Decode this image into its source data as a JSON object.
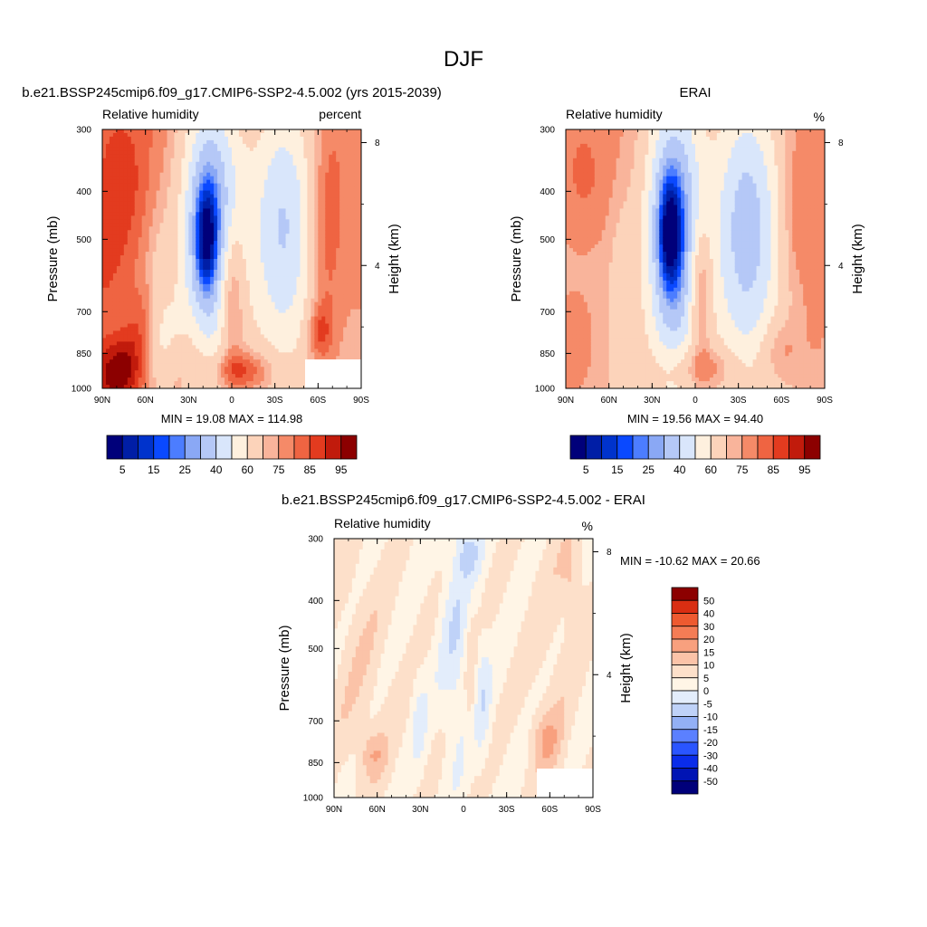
{
  "title": "DJF",
  "colors": {
    "abs": [
      "#00007a",
      "#001ea6",
      "#0033cc",
      "#0a49ff",
      "#4c7dff",
      "#8aa8f5",
      "#b5c8f7",
      "#d9e6fb",
      "#fef0de",
      "#fcd3ba",
      "#f9b49b",
      "#f58a68",
      "#ef6442",
      "#e33b1f",
      "#c11b0c",
      "#8c0000"
    ],
    "diff": [
      "#00007a",
      "#0014b4",
      "#0a2cea",
      "#2a55ff",
      "#5b80ff",
      "#93b0f5",
      "#bfd2f8",
      "#e3edfb",
      "#fff5e6",
      "#fde0ca",
      "#fbc3a8",
      "#f8a07e",
      "#f47c55",
      "#ee5a30",
      "#d92e12",
      "#8c0000"
    ]
  },
  "chart_data": [
    {
      "type": "heatmap",
      "title": "b.e21.BSSP245cmip6.f09_g17.CMIP6-SSP2-4.5.002 (yrs 2015-2039)",
      "left_label": "Relative humidity",
      "right_label": "percent",
      "ylabel": "Pressure (mb)",
      "ylabel_right": "Height (km)",
      "xticks": [
        "90N",
        "60N",
        "30N",
        "0",
        "30S",
        "60S",
        "90S"
      ],
      "yticks": [
        "300",
        "400",
        "500",
        "700",
        "850",
        "1000"
      ],
      "yticks_right": [
        "8",
        "4"
      ],
      "stats": "MIN =  19.08  MAX = 114.98",
      "colorbar_labels": [
        "5",
        "15",
        "25",
        "40",
        "60",
        "75",
        "85",
        "95"
      ]
    },
    {
      "type": "heatmap",
      "title": "ERAI",
      "left_label": "Relative humidity",
      "right_label": "%",
      "ylabel": "Pressure (mb)",
      "ylabel_right": "Height (km)",
      "xticks": [
        "90N",
        "60N",
        "30N",
        "0",
        "30S",
        "60S",
        "90S"
      ],
      "yticks": [
        "300",
        "400",
        "500",
        "700",
        "850",
        "1000"
      ],
      "yticks_right": [
        "8",
        "4"
      ],
      "stats": "MIN =  19.56  MAX =  94.40",
      "colorbar_labels": [
        "5",
        "15",
        "25",
        "40",
        "60",
        "75",
        "85",
        "95"
      ]
    },
    {
      "type": "heatmap",
      "title": "b.e21.BSSP245cmip6.f09_g17.CMIP6-SSP2-4.5.002 - ERAI",
      "left_label": "Relative humidity",
      "right_label": "%",
      "ylabel": "Pressure (mb)",
      "ylabel_right": "Height (km)",
      "xticks": [
        "90N",
        "60N",
        "30N",
        "0",
        "30S",
        "60S",
        "90S"
      ],
      "yticks": [
        "300",
        "400",
        "500",
        "700",
        "850",
        "1000"
      ],
      "yticks_right": [
        "8",
        "4"
      ],
      "stats": "MIN = -10.62  MAX =  20.66",
      "colorbar_labels": [
        "50",
        "40",
        "30",
        "20",
        "15",
        "10",
        "5",
        "0",
        "-5",
        "-10",
        "-15",
        "-20",
        "-30",
        "-40",
        "-50"
      ]
    }
  ]
}
